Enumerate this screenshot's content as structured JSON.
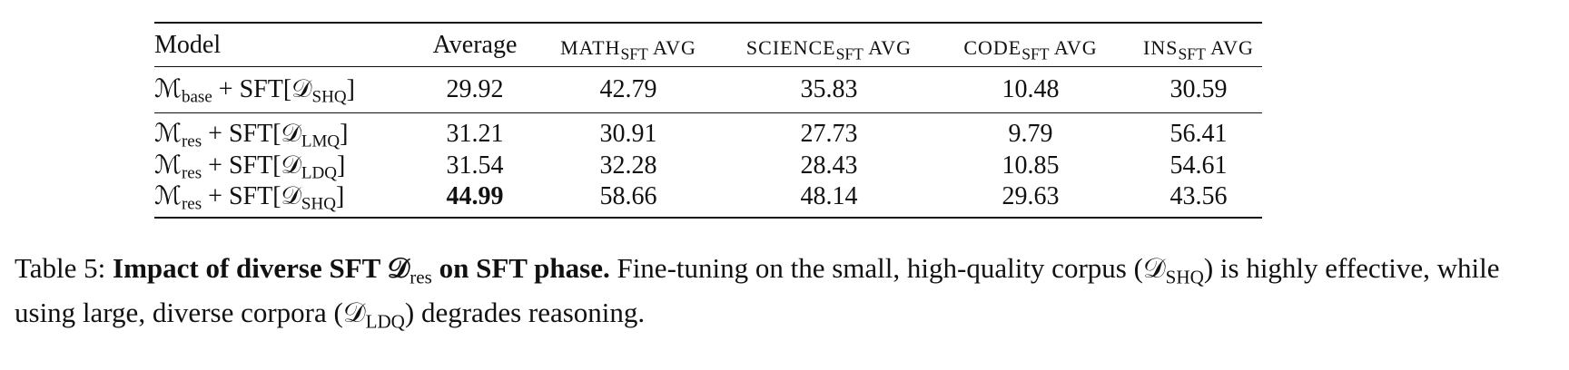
{
  "table": {
    "header": [
      [
        "Model"
      ],
      [
        "Average"
      ],
      [
        "MATH",
        "SFT",
        " AVG"
      ],
      [
        "SCIENCE",
        "SFT",
        " AVG"
      ],
      [
        "CODE",
        "SFT",
        " AVG"
      ],
      [
        "INS",
        "SFT",
        " AVG"
      ]
    ],
    "rows": [
      {
        "model": [
          "ℳ",
          "base",
          " + SFT[𝒟",
          "SHQ",
          "]"
        ],
        "values": [
          29.92,
          42.79,
          35.83,
          10.48,
          30.59
        ]
      },
      {
        "model": [
          "ℳ",
          "res",
          " + SFT[𝒟",
          "LMQ",
          "]"
        ],
        "values": [
          31.21,
          30.91,
          27.73,
          9.79,
          56.41
        ]
      },
      {
        "model": [
          "ℳ",
          "res",
          " + SFT[𝒟",
          "LDQ",
          "]"
        ],
        "values": [
          31.54,
          32.28,
          28.43,
          10.85,
          54.61
        ]
      },
      {
        "model": [
          "ℳ",
          "res",
          " + SFT[𝒟",
          "SHQ",
          "]"
        ],
        "values": [
          44.99,
          58.66,
          48.14,
          29.63,
          43.56
        ]
      }
    ],
    "bold": [
      [
        3,
        0
      ]
    ]
  },
  "caption": [
    {
      "text": "Table 5: "
    },
    {
      "text": "Impact of diverse SFT 𝒟",
      "bold": true
    },
    {
      "text": "res",
      "sub": true
    },
    {
      "text": " on SFT phase.",
      "bold": true
    },
    {
      "text": " Fine-tuning on the small, high-quality corpus (𝒟"
    },
    {
      "text": "SHQ",
      "sub": true
    },
    {
      "text": ") is highly effective, while using large, diverse corpora (𝒟"
    },
    {
      "text": "LDQ",
      "sub": true
    },
    {
      "text": ") degrades reasoning."
    }
  ]
}
